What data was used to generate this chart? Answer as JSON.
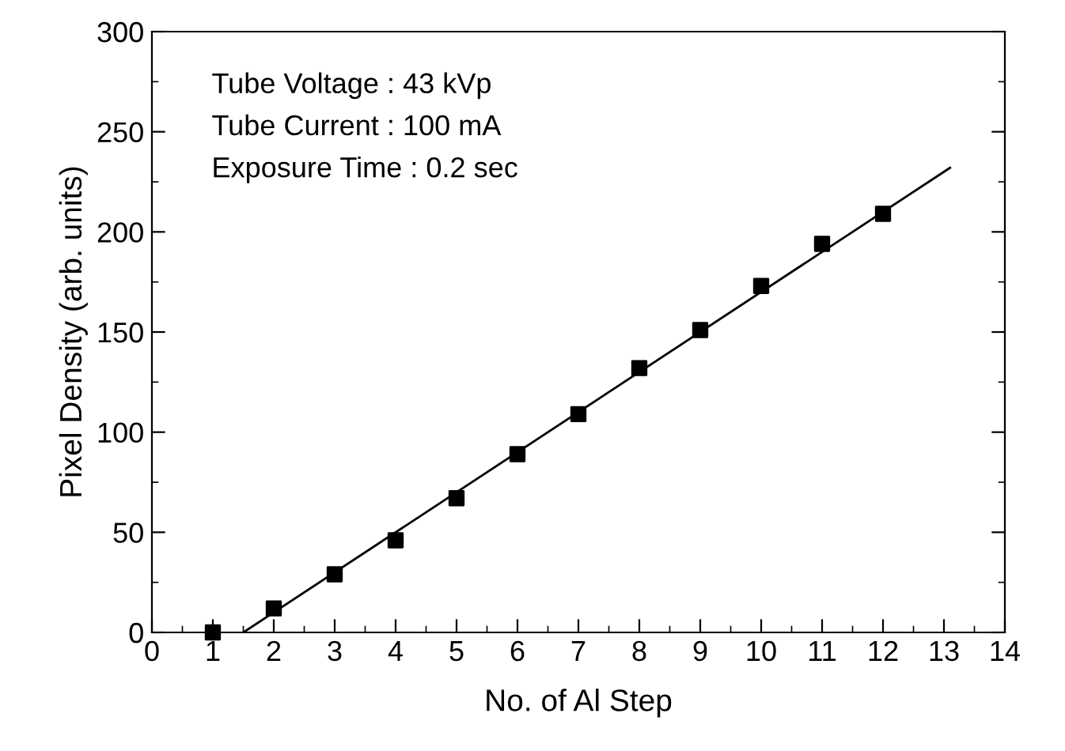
{
  "chart_data": {
    "type": "scatter",
    "xlabel": "No. of Al Step",
    "ylabel": "Pixel Density (arb. units)",
    "xlim": [
      0,
      14
    ],
    "ylim": [
      0,
      300
    ],
    "xticks": [
      0,
      1,
      2,
      3,
      4,
      5,
      6,
      7,
      8,
      9,
      10,
      11,
      12,
      13,
      14
    ],
    "yticks": [
      0,
      50,
      100,
      150,
      200,
      250,
      300
    ],
    "grid": false,
    "legend": false,
    "annotations": [
      "Tube Voltage : 43 kVp",
      "Tube Current : 100 mA",
      "Exposure Time : 0.2 sec"
    ],
    "series": [
      {
        "marker": "square",
        "color": "#000000",
        "x": [
          1,
          2,
          3,
          4,
          5,
          6,
          7,
          8,
          9,
          10,
          11,
          12
        ],
        "values": [
          0,
          12,
          29,
          46,
          67,
          89,
          109,
          132,
          151,
          173,
          194,
          209
        ]
      },
      {
        "type": "line",
        "marker": "none",
        "color": "#000000",
        "x": [
          1.5,
          13.1
        ],
        "values": [
          0,
          232
        ]
      }
    ]
  }
}
